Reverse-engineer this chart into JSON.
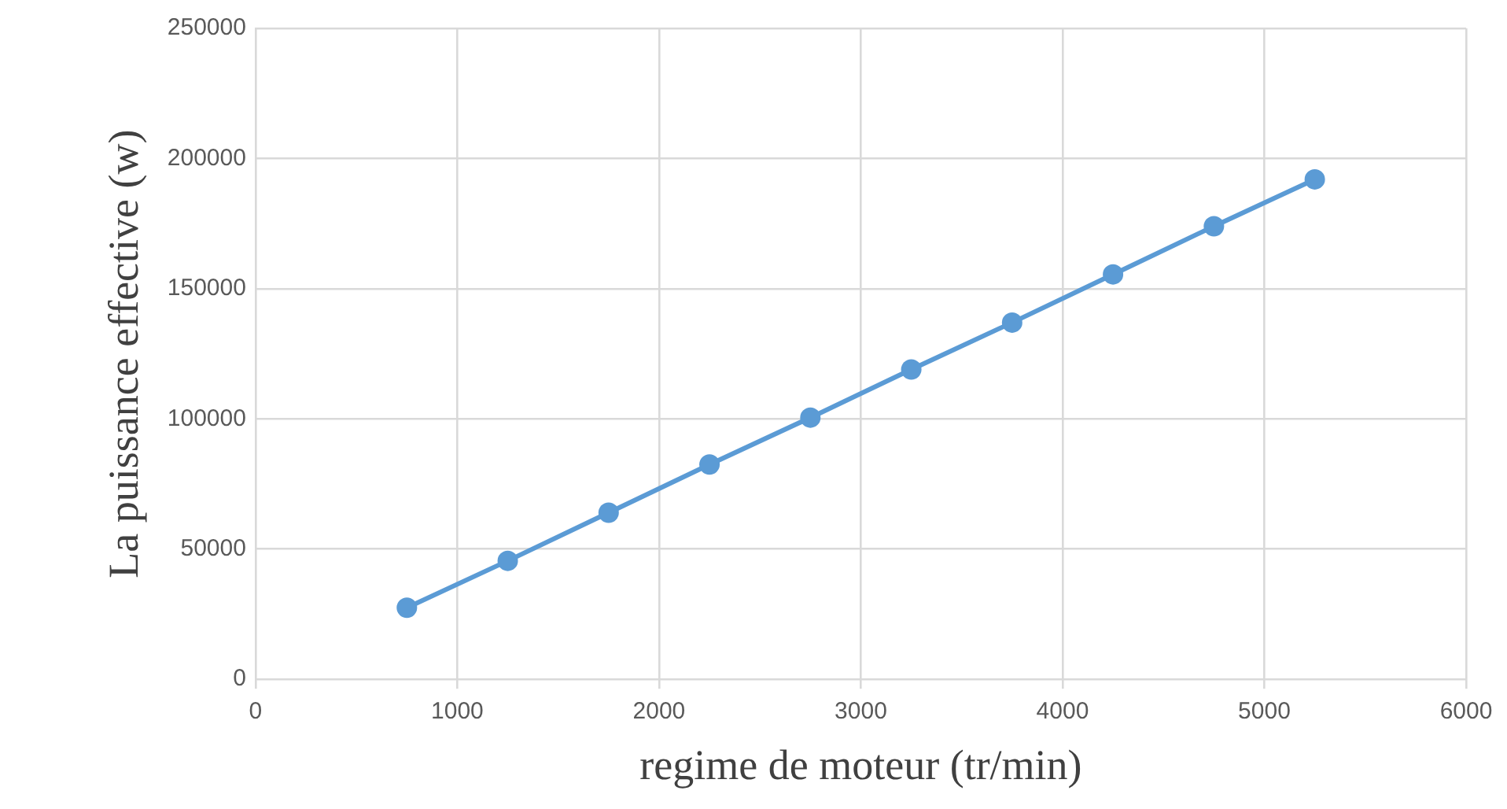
{
  "chart_data": {
    "type": "line",
    "xlabel": "regime de moteur (tr/min)",
    "ylabel": "La puissance effective (w)",
    "x": [
      750,
      1250,
      1750,
      2250,
      2750,
      3250,
      3750,
      4250,
      4750,
      5250
    ],
    "series": [
      {
        "color": "#5b9bd5",
        "values": [
          27500,
          45500,
          64000,
          82500,
          100500,
          119000,
          137000,
          155500,
          174000,
          192000
        ]
      }
    ],
    "xlim": [
      0,
      6000
    ],
    "xticks": [
      0,
      1000,
      2000,
      3000,
      4000,
      5000,
      6000
    ],
    "ylim": [
      0,
      250000
    ],
    "yticks": [
      0,
      50000,
      100000,
      150000,
      200000,
      250000
    ],
    "grid": true,
    "legend": false,
    "marker": "circle",
    "line_style": "solid"
  }
}
